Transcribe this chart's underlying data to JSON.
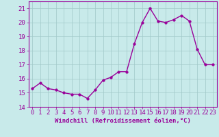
{
  "x": [
    0,
    1,
    2,
    3,
    4,
    5,
    6,
    7,
    8,
    9,
    10,
    11,
    12,
    13,
    14,
    15,
    16,
    17,
    18,
    19,
    20,
    21,
    22,
    23
  ],
  "y": [
    15.3,
    15.7,
    15.3,
    15.2,
    15.0,
    14.9,
    14.9,
    14.6,
    15.2,
    15.9,
    16.1,
    16.5,
    16.5,
    18.5,
    20.0,
    21.0,
    20.1,
    20.0,
    20.2,
    20.5,
    20.1,
    18.1,
    17.0,
    17.0
  ],
  "line_color": "#990099",
  "marker_color": "#990099",
  "bg_color": "#c8eaea",
  "grid_color": "#a0c8c8",
  "xlabel": "Windchill (Refroidissement éolien,°C)",
  "ylabel": "",
  "title": "",
  "xlim": [
    -0.5,
    23.5
  ],
  "ylim": [
    14,
    21.5
  ],
  "yticks": [
    14,
    15,
    16,
    17,
    18,
    19,
    20,
    21
  ],
  "xticks": [
    0,
    1,
    2,
    3,
    4,
    5,
    6,
    7,
    8,
    9,
    10,
    11,
    12,
    13,
    14,
    15,
    16,
    17,
    18,
    19,
    20,
    21,
    22,
    23
  ],
  "xlabel_fontsize": 6.5,
  "tick_fontsize": 6.5,
  "line_width": 1.0,
  "marker_size": 2.5
}
